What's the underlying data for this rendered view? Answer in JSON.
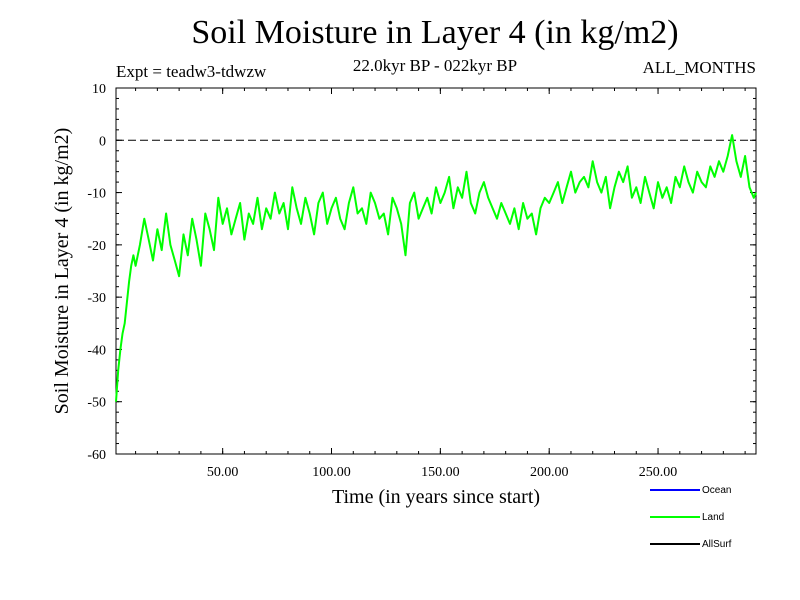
{
  "header": {
    "title": "Soil Moisture in Layer 4 (in kg/m2)",
    "subtitle": "22.0kyr BP - 022kyr BP",
    "expt": "Expt = teadw3-tdwzw",
    "months": "ALL_MONTHS"
  },
  "chart_data": {
    "type": "line",
    "title": "Soil Moisture in Layer 4 (in kg/m2)",
    "xlabel": "Time (in years since start)",
    "ylabel": "Soil Moisture in Layer 4 (in kg/m2)",
    "xlim": [
      1,
      295
    ],
    "ylim": [
      -60,
      10
    ],
    "x_ticks": [
      50,
      100,
      150,
      200,
      250
    ],
    "x_tick_labels": [
      "50.00",
      "100.00",
      "150.00",
      "200.00",
      "250.00"
    ],
    "y_ticks": [
      10,
      0,
      -10,
      -20,
      -30,
      -40,
      -50,
      -60
    ],
    "y_tick_labels": [
      "10",
      "0",
      "-10",
      "-20",
      "-30",
      "-40",
      "-50",
      "-60"
    ],
    "reference_line": {
      "y": 0,
      "style": "dashed"
    },
    "legend": [
      {
        "name": "Ocean",
        "color": "#0000ff"
      },
      {
        "name": "Land",
        "color": "#00ff00"
      },
      {
        "name": "AllSurf",
        "color": "#000000"
      }
    ],
    "series": [
      {
        "name": "Land",
        "color": "#00ff00",
        "x": [
          1,
          2,
          3,
          4,
          5,
          6,
          7,
          8,
          9,
          10,
          12,
          14,
          16,
          18,
          20,
          22,
          24,
          26,
          28,
          30,
          32,
          34,
          36,
          38,
          40,
          42,
          44,
          46,
          48,
          50,
          52,
          54,
          56,
          58,
          60,
          62,
          64,
          66,
          68,
          70,
          72,
          74,
          76,
          78,
          80,
          82,
          84,
          86,
          88,
          90,
          92,
          94,
          96,
          98,
          100,
          102,
          104,
          106,
          108,
          110,
          112,
          114,
          116,
          118,
          120,
          122,
          124,
          126,
          128,
          130,
          132,
          134,
          136,
          138,
          140,
          142,
          144,
          146,
          148,
          150,
          152,
          154,
          156,
          158,
          160,
          162,
          164,
          166,
          168,
          170,
          172,
          174,
          176,
          178,
          180,
          182,
          184,
          186,
          188,
          190,
          192,
          194,
          196,
          198,
          200,
          202,
          204,
          206,
          208,
          210,
          212,
          214,
          216,
          218,
          220,
          222,
          224,
          226,
          228,
          230,
          232,
          234,
          236,
          238,
          240,
          242,
          244,
          246,
          248,
          250,
          252,
          254,
          256,
          258,
          260,
          262,
          264,
          266,
          268,
          270,
          272,
          274,
          276,
          278,
          280,
          282,
          284,
          286,
          288,
          290,
          292,
          294,
          295
        ],
        "values": [
          -50,
          -44,
          -40,
          -37,
          -35,
          -31,
          -27,
          -24,
          -22,
          -24,
          -20,
          -15,
          -19,
          -23,
          -17,
          -21,
          -14,
          -20,
          -23,
          -26,
          -18,
          -22,
          -15,
          -19,
          -24,
          -14,
          -17,
          -21,
          -11,
          -16,
          -13,
          -18,
          -15,
          -12,
          -19,
          -14,
          -16,
          -11,
          -17,
          -13,
          -15,
          -10,
          -14,
          -12,
          -17,
          -9,
          -13,
          -16,
          -11,
          -14,
          -18,
          -12,
          -10,
          -16,
          -13,
          -11,
          -15,
          -17,
          -12,
          -9,
          -14,
          -13,
          -16,
          -10,
          -12,
          -15,
          -14,
          -18,
          -11,
          -13,
          -16,
          -22,
          -12,
          -10,
          -15,
          -13,
          -11,
          -14,
          -9,
          -12,
          -10,
          -7,
          -13,
          -9,
          -11,
          -6,
          -12,
          -14,
          -10,
          -8,
          -11,
          -13,
          -15,
          -12,
          -14,
          -16,
          -13,
          -17,
          -12,
          -15,
          -14,
          -18,
          -13,
          -11,
          -12,
          -10,
          -8,
          -12,
          -9,
          -6,
          -10,
          -8,
          -7,
          -9,
          -4,
          -8,
          -10,
          -7,
          -13,
          -9,
          -6,
          -8,
          -5,
          -11,
          -9,
          -12,
          -7,
          -10,
          -13,
          -8,
          -11,
          -9,
          -12,
          -7,
          -9,
          -5,
          -8,
          -10,
          -6,
          -8,
          -9,
          -5,
          -7,
          -4,
          -6,
          -3,
          1,
          -4,
          -7,
          -3,
          -9,
          -11,
          -10
        ]
      }
    ]
  }
}
